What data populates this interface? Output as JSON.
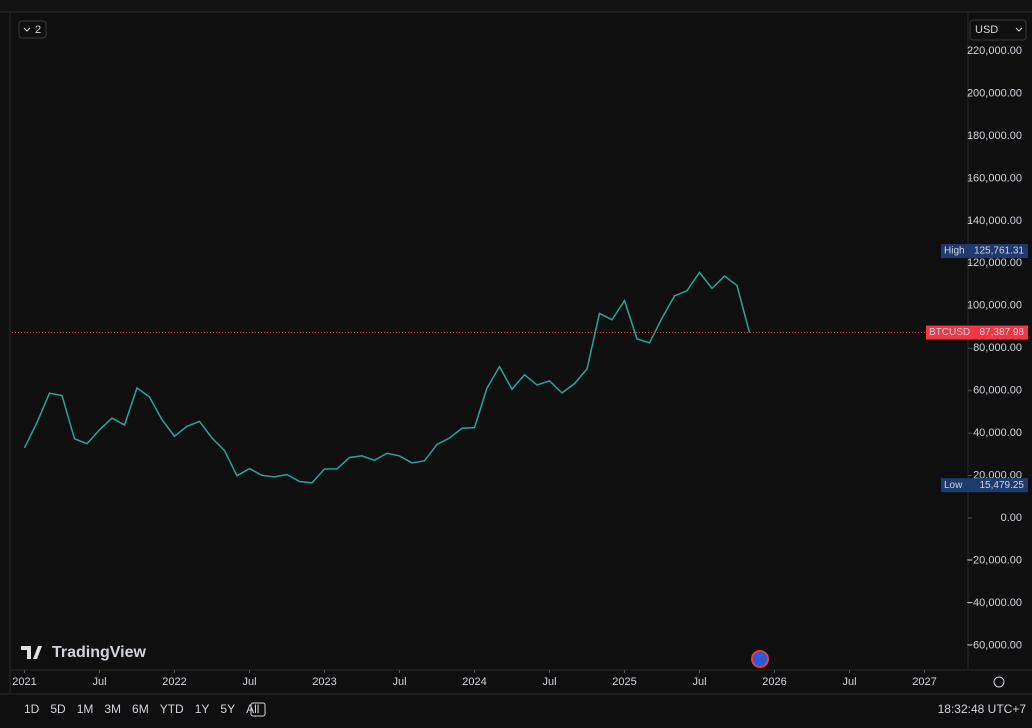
{
  "ui": {
    "indicator_count": "2",
    "currency": "USD",
    "brand": "TradingView",
    "range_buttons": [
      "1D",
      "5D",
      "1M",
      "3M",
      "6M",
      "YTD",
      "1Y",
      "5Y",
      "All"
    ],
    "clock": "18:32:48 UTC+7"
  },
  "chart_data": {
    "type": "line",
    "x": [
      "2021-01",
      "2021-02",
      "2021-03",
      "2021-04",
      "2021-05",
      "2021-06",
      "2021-07",
      "2021-08",
      "2021-09",
      "2021-10",
      "2021-11",
      "2021-12",
      "2022-01",
      "2022-02",
      "2022-03",
      "2022-04",
      "2022-05",
      "2022-06",
      "2022-07",
      "2022-08",
      "2022-09",
      "2022-10",
      "2022-11",
      "2022-12",
      "2023-01",
      "2023-02",
      "2023-03",
      "2023-04",
      "2023-05",
      "2023-06",
      "2023-07",
      "2023-08",
      "2023-09",
      "2023-10",
      "2023-11",
      "2023-12",
      "2024-01",
      "2024-02",
      "2024-03",
      "2024-04",
      "2024-05",
      "2024-06",
      "2024-07",
      "2024-08",
      "2024-09",
      "2024-10",
      "2024-11",
      "2024-12",
      "2025-01",
      "2025-02",
      "2025-03",
      "2025-04",
      "2025-05",
      "2025-06",
      "2025-07",
      "2025-08",
      "2025-09",
      "2025-10",
      "2025-11"
    ],
    "series": [
      {
        "name": "BTCUSD",
        "color": "#26a69a",
        "values": [
          33000,
          45000,
          58800,
          57700,
          37300,
          35000,
          41500,
          47100,
          43800,
          61300,
          57000,
          46300,
          38500,
          43200,
          45500,
          37700,
          31800,
          19900,
          23300,
          20050,
          19400,
          20500,
          17200,
          16550,
          23100,
          23150,
          28500,
          29250,
          27200,
          30500,
          29250,
          25950,
          26950,
          34650,
          37700,
          42300,
          42600,
          61200,
          71300,
          60650,
          67500,
          62700,
          64600,
          58950,
          63300,
          70200,
          96400,
          93400,
          102400,
          84400,
          82500,
          94200,
          104600,
          107100,
          115700,
          108200,
          114000,
          109500,
          87387.98
        ]
      }
    ],
    "xlim": [
      "2020-12",
      "2027-04"
    ],
    "xticks": [
      {
        "value": "2021-01",
        "label": "2021"
      },
      {
        "value": "2021-07",
        "label": "Jul"
      },
      {
        "value": "2022-01",
        "label": "2022"
      },
      {
        "value": "2022-07",
        "label": "Jul"
      },
      {
        "value": "2023-01",
        "label": "2023"
      },
      {
        "value": "2023-07",
        "label": "Jul"
      },
      {
        "value": "2024-01",
        "label": "2024"
      },
      {
        "value": "2024-07",
        "label": "Jul"
      },
      {
        "value": "2025-01",
        "label": "2025"
      },
      {
        "value": "2025-07",
        "label": "Jul"
      },
      {
        "value": "2026-01",
        "label": "2026"
      },
      {
        "value": "2026-07",
        "label": "Jul"
      },
      {
        "value": "2027-01",
        "label": "2027"
      }
    ],
    "ylim": [
      -70000,
      235000
    ],
    "yticks": [
      {
        "value": 220000,
        "label": "220,000.00"
      },
      {
        "value": 200000,
        "label": "200,000.00"
      },
      {
        "value": 180000,
        "label": "180,000.00"
      },
      {
        "value": 160000,
        "label": "160,000.00"
      },
      {
        "value": 140000,
        "label": "140,000.00"
      },
      {
        "value": 120000,
        "label": "120,000.00"
      },
      {
        "value": 100000,
        "label": "100,000.00"
      },
      {
        "value": 80000,
        "label": "80,000.00"
      },
      {
        "value": 60000,
        "label": "60,000.00"
      },
      {
        "value": 40000,
        "label": "40,000.00"
      },
      {
        "value": 20000,
        "label": "20,000.00"
      },
      {
        "value": 0,
        "label": "0.00"
      },
      {
        "value": -20000,
        "label": "−20,000.00"
      },
      {
        "value": -40000,
        "label": "−40,000.00"
      },
      {
        "value": -60000,
        "label": "−60,000.00"
      }
    ],
    "markers": [
      {
        "name": "High",
        "value": 125761.31,
        "value_label": "125,761.31",
        "color": "#1e3a6e"
      },
      {
        "name": "BTCUSD",
        "value": 87387.98,
        "value_label": "87,387.98",
        "color": "#f23645"
      },
      {
        "name": "Low",
        "value": 15479.25,
        "value_label": "15,479.25",
        "color": "#1e3a6e"
      }
    ],
    "grid": false
  }
}
